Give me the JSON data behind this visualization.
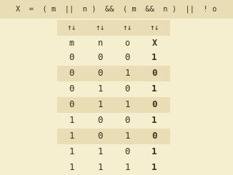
{
  "title": "X  =  ( m  ||  n )  &&  ( m  &&  n )  ||  ! o",
  "bg_color": "#f5eecf",
  "shade_color": "#e8ddb5",
  "text_color": "#3a3020",
  "header_row": [
    "m",
    "n",
    "o",
    "X"
  ],
  "sort_arrows": [
    "↑↓",
    "↑↓",
    "↑↓",
    "↑↓"
  ],
  "rows": [
    [
      "0",
      "0",
      "0",
      "1"
    ],
    [
      "0",
      "0",
      "1",
      "0"
    ],
    [
      "0",
      "1",
      "0",
      "1"
    ],
    [
      "0",
      "1",
      "1",
      "0"
    ],
    [
      "1",
      "0",
      "0",
      "1"
    ],
    [
      "1",
      "0",
      "1",
      "0"
    ],
    [
      "1",
      "1",
      "0",
      "1"
    ],
    [
      "1",
      "1",
      "1",
      "1"
    ]
  ],
  "shaded_rows": [
    1,
    3,
    5
  ],
  "bold_col": 3,
  "title_font_size": 7.5,
  "header_font_size": 8.5,
  "arrow_font_size": 8,
  "data_font_size": 9,
  "fig_width": 3.26,
  "fig_height": 2.45,
  "dpi": 100
}
